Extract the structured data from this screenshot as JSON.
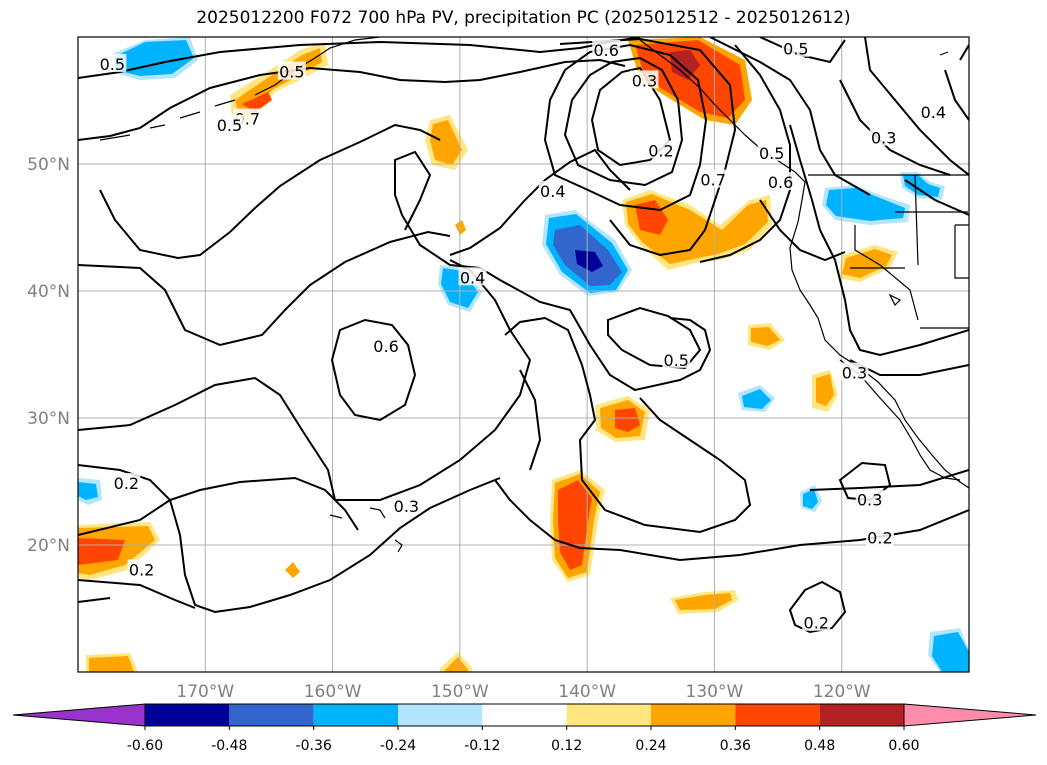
{
  "title": "2025012200 F072 700 hPa PV, precipitation PC (2025012512 - 2025012612)",
  "map": {
    "lon_range": [
      180,
      110
    ],
    "lat_range": [
      10,
      60
    ],
    "lon_ticks": [
      {
        "lon": 170,
        "label": "170°W"
      },
      {
        "lon": 160,
        "label": "160°W"
      },
      {
        "lon": 150,
        "label": "150°W"
      },
      {
        "lon": 140,
        "label": "140°W"
      },
      {
        "lon": 130,
        "label": "130°W"
      },
      {
        "lon": 120,
        "label": "120°W"
      }
    ],
    "lat_ticks": [
      {
        "lat": 50,
        "label": "50°N"
      },
      {
        "lat": 40,
        "label": "40°N"
      },
      {
        "lat": 30,
        "label": "30°N"
      },
      {
        "lat": 20,
        "label": "20°N"
      }
    ],
    "contour_labels": [
      {
        "text": "0.5",
        "lon": 177.3,
        "lat": 57.8
      },
      {
        "text": "0.5",
        "lon": 163.2,
        "lat": 57.2
      },
      {
        "text": "0.7",
        "lon": 166.7,
        "lat": 53.5
      },
      {
        "text": "0.5",
        "lon": 168.1,
        "lat": 53.0
      },
      {
        "text": "0.6",
        "lon": 138.5,
        "lat": 58.9
      },
      {
        "text": "0.3",
        "lon": 135.5,
        "lat": 56.5
      },
      {
        "text": "0.2",
        "lon": 134.2,
        "lat": 51.0
      },
      {
        "text": "0.5",
        "lon": 123.6,
        "lat": 59.0
      },
      {
        "text": "0.7",
        "lon": 130.1,
        "lat": 48.7
      },
      {
        "text": "0.5",
        "lon": 125.5,
        "lat": 50.8
      },
      {
        "text": "0.6",
        "lon": 124.8,
        "lat": 48.5
      },
      {
        "text": "0.3",
        "lon": 116.7,
        "lat": 52.0
      },
      {
        "text": "0.4",
        "lon": 112.8,
        "lat": 54.0
      },
      {
        "text": "0.4",
        "lon": 142.7,
        "lat": 47.8
      },
      {
        "text": "0.4",
        "lon": 149.0,
        "lat": 41.0
      },
      {
        "text": "0.6",
        "lon": 155.8,
        "lat": 35.6
      },
      {
        "text": "0.5",
        "lon": 133.0,
        "lat": 34.5
      },
      {
        "text": "0.3",
        "lon": 154.2,
        "lat": 23.0
      },
      {
        "text": "0.2",
        "lon": 176.2,
        "lat": 24.8
      },
      {
        "text": "0.2",
        "lon": 175.0,
        "lat": 18.0
      },
      {
        "text": "0.3",
        "lon": 119.0,
        "lat": 33.5
      },
      {
        "text": "0.3",
        "lon": 117.8,
        "lat": 23.5
      },
      {
        "text": "0.2",
        "lon": 117.0,
        "lat": 20.5
      },
      {
        "text": "0.2",
        "lon": 122.0,
        "lat": 13.8
      }
    ]
  },
  "colorbar": {
    "levels": [
      "-0.60",
      "-0.48",
      "-0.36",
      "-0.24",
      "-0.12",
      "0.12",
      "0.24",
      "0.36",
      "0.48",
      "0.60"
    ],
    "colors": [
      "#9933cc",
      "#000099",
      "#3366cc",
      "#00b3ff",
      "#b3e5ff",
      "#ffffff",
      "#ffe680",
      "#ffa500",
      "#ff4500",
      "#b22222",
      "#ff8caa"
    ]
  }
}
